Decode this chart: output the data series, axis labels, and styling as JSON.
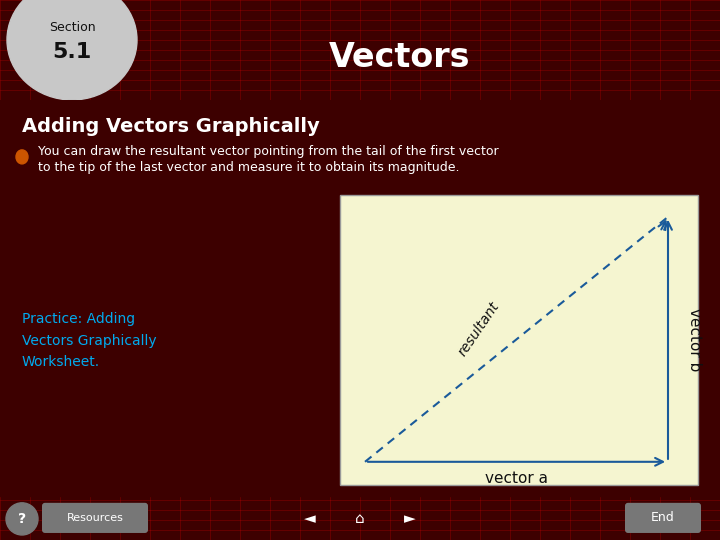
{
  "title": "Vectors",
  "section_label": "Section",
  "section_number": "5.1",
  "subtitle": "Adding Vectors Graphically",
  "bullet_text_line1": "You can draw the resultant vector pointing from the tail of the first vector",
  "bullet_text_line2": "to the tip of the last vector and measure it to obtain its magnitude.",
  "practice_text": "Practice: Adding\nVectors Graphically\nWorksheet.",
  "vector_a_label": "vector a",
  "vector_b_label": "vector b",
  "resultant_label": "resultant",
  "bg_color": "#3d0000",
  "header_bg": "#8b0000",
  "title_text_color": "#ffffff",
  "subtitle_color": "#ffffff",
  "bullet_color": "#ffffff",
  "practice_color": "#00aaee",
  "diagram_bg": "#f5f5d0",
  "arrow_color": "#1a5a9a",
  "footer_bg": "#7a0000",
  "bullet_dot_color": "#cc5500",
  "section_badge_color": "#c8c8c8",
  "section_text_color": "#111111",
  "footer_button_color": "#777777",
  "nav_text_color": "#ffffff"
}
